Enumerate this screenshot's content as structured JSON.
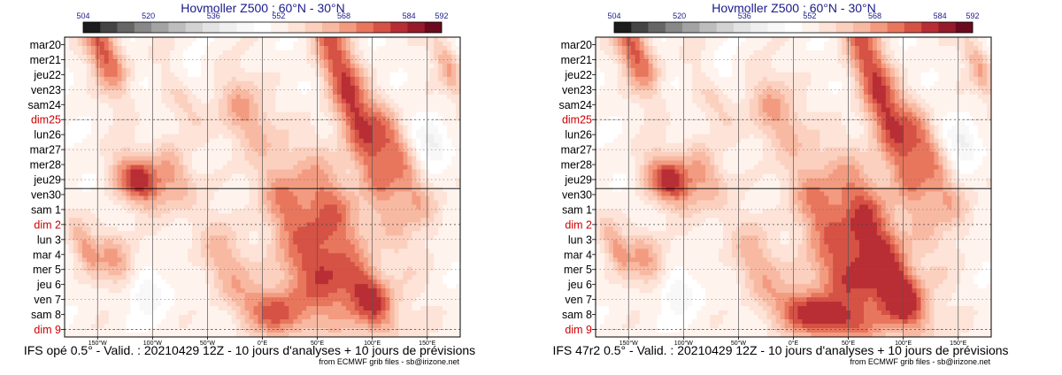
{
  "chart_data": [
    {
      "type": "heatmap",
      "title": "Hovmoller Z500 : 60°N - 30°N",
      "colorbar": {
        "ticks": [
          "504",
          "520",
          "536",
          "552",
          "568",
          "584",
          "592"
        ],
        "colors": [
          "#1c1c1c",
          "#444444",
          "#666666",
          "#888888",
          "#a3a3a3",
          "#bdbdbd",
          "#d2d2d2",
          "#e3e3e3",
          "#efefef",
          "#f8f8f8",
          "#ffffff",
          "#fff3ee",
          "#fde3d8",
          "#fbd0bf",
          "#f8b9a2",
          "#f39b80",
          "#e8765d",
          "#d55245",
          "#b92e34",
          "#961b2a",
          "#6b0a1f"
        ],
        "range": [
          504,
          592
        ]
      },
      "y_labels": [
        "mar20",
        "mer21",
        "jeu22",
        "ven23",
        "sam24",
        "dim25",
        "lun26",
        "mar27",
        "mer28",
        "jeu29",
        "ven30",
        "sam 1",
        "dim 2",
        "lun 3",
        "mar 4",
        "mer 5",
        "jeu 6",
        "ven 7",
        "sam 8",
        "dim 9"
      ],
      "sunday_labels": [
        "dim25",
        "dim 2",
        "dim 9"
      ],
      "x_labels": [
        "150°W",
        "100°W",
        "50°W",
        "0°E",
        "50°E",
        "100°E",
        "150°E"
      ],
      "x_range": [
        -180,
        180
      ],
      "x_unit": "degrees longitude",
      "analysis_forecast_split": "ven30",
      "footer": "IFS opé 0.5° - Valid. : 20210429 12Z - 10 jours d'analyses + 10 jours de prévisions",
      "credit": "from ECMWF grib files - sb@irizone.net"
    },
    {
      "type": "heatmap",
      "title": "Hovmoller Z500 : 60°N - 30°N",
      "colorbar": {
        "ticks": [
          "504",
          "520",
          "536",
          "552",
          "568",
          "584",
          "592"
        ],
        "colors": [
          "#1c1c1c",
          "#444444",
          "#666666",
          "#888888",
          "#a3a3a3",
          "#bdbdbd",
          "#d2d2d2",
          "#e3e3e3",
          "#efefef",
          "#f8f8f8",
          "#ffffff",
          "#fff3ee",
          "#fde3d8",
          "#fbd0bf",
          "#f8b9a2",
          "#f39b80",
          "#e8765d",
          "#d55245",
          "#b92e34",
          "#961b2a",
          "#6b0a1f"
        ],
        "range": [
          504,
          592
        ]
      },
      "y_labels": [
        "mar20",
        "mer21",
        "jeu22",
        "ven23",
        "sam24",
        "dim25",
        "lun26",
        "mar27",
        "mer28",
        "jeu29",
        "ven30",
        "sam 1",
        "dim 2",
        "lun 3",
        "mar 4",
        "mer 5",
        "jeu 6",
        "ven 7",
        "sam 8",
        "dim 9"
      ],
      "sunday_labels": [
        "dim25",
        "dim 2",
        "dim 9"
      ],
      "x_labels": [
        "150°W",
        "100°W",
        "50°W",
        "0°E",
        "50°E",
        "100°E",
        "150°E"
      ],
      "x_range": [
        -180,
        180
      ],
      "x_unit": "degrees longitude",
      "analysis_forecast_split": "ven30",
      "footer": "IFS 47r2 0.5° - Valid. : 20210429 12Z - 10 jours d'analyses + 10 jours de prévisions",
      "credit": "from ECMWF grib files - sb@irizone.net"
    }
  ]
}
